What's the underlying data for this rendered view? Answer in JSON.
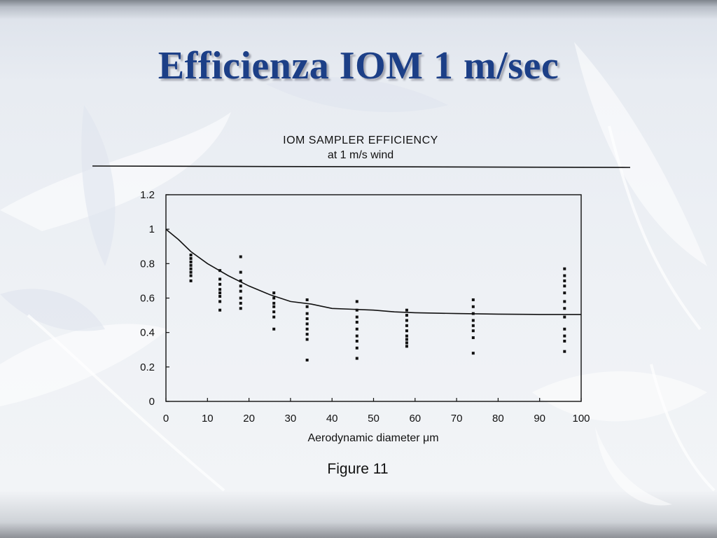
{
  "slide": {
    "title": "Efficienza IOM  1 m/sec"
  },
  "chart_data": {
    "type": "scatter",
    "title": "IOM SAMPLER EFFICIENCY",
    "subtitle": "at 1 m/s wind",
    "xlabel": "Aerodynamic diameter μm",
    "ylabel": "",
    "xlim": [
      0,
      100
    ],
    "ylim": [
      0,
      1.2
    ],
    "xticks": [
      "0",
      "10",
      "20",
      "30",
      "40",
      "50",
      "60",
      "70",
      "80",
      "90",
      "100"
    ],
    "yticks": [
      "0",
      "0.2",
      "0.4",
      "0.6",
      "0.8",
      "1",
      "1.2"
    ],
    "grid": false,
    "caption": "Figure 11",
    "series": [
      {
        "type": "scatter",
        "points": [
          [
            6,
            0.7
          ],
          [
            6,
            0.73
          ],
          [
            6,
            0.75
          ],
          [
            6,
            0.77
          ],
          [
            6,
            0.79
          ],
          [
            6,
            0.81
          ],
          [
            6,
            0.83
          ],
          [
            6,
            0.85
          ],
          [
            13,
            0.53
          ],
          [
            13,
            0.58
          ],
          [
            13,
            0.61
          ],
          [
            13,
            0.63
          ],
          [
            13,
            0.65
          ],
          [
            13,
            0.68
          ],
          [
            13,
            0.71
          ],
          [
            13,
            0.76
          ],
          [
            18,
            0.54
          ],
          [
            18,
            0.57
          ],
          [
            18,
            0.6
          ],
          [
            18,
            0.64
          ],
          [
            18,
            0.67
          ],
          [
            18,
            0.7
          ],
          [
            18,
            0.75
          ],
          [
            18,
            0.84
          ],
          [
            26,
            0.42
          ],
          [
            26,
            0.49
          ],
          [
            26,
            0.52
          ],
          [
            26,
            0.55
          ],
          [
            26,
            0.57
          ],
          [
            26,
            0.6
          ],
          [
            26,
            0.63
          ],
          [
            34,
            0.24
          ],
          [
            34,
            0.36
          ],
          [
            34,
            0.39
          ],
          [
            34,
            0.42
          ],
          [
            34,
            0.45
          ],
          [
            34,
            0.48
          ],
          [
            34,
            0.51
          ],
          [
            34,
            0.55
          ],
          [
            34,
            0.59
          ],
          [
            46,
            0.25
          ],
          [
            46,
            0.31
          ],
          [
            46,
            0.35
          ],
          [
            46,
            0.38
          ],
          [
            46,
            0.42
          ],
          [
            46,
            0.46
          ],
          [
            46,
            0.49
          ],
          [
            46,
            0.53
          ],
          [
            46,
            0.58
          ],
          [
            58,
            0.32
          ],
          [
            58,
            0.34
          ],
          [
            58,
            0.36
          ],
          [
            58,
            0.38
          ],
          [
            58,
            0.41
          ],
          [
            58,
            0.44
          ],
          [
            58,
            0.47
          ],
          [
            58,
            0.5
          ],
          [
            58,
            0.53
          ],
          [
            74,
            0.28
          ],
          [
            74,
            0.37
          ],
          [
            74,
            0.41
          ],
          [
            74,
            0.44
          ],
          [
            74,
            0.47
          ],
          [
            74,
            0.51
          ],
          [
            74,
            0.55
          ],
          [
            74,
            0.59
          ],
          [
            96,
            0.29
          ],
          [
            96,
            0.35
          ],
          [
            96,
            0.38
          ],
          [
            96,
            0.42
          ],
          [
            96,
            0.49
          ],
          [
            96,
            0.54
          ],
          [
            96,
            0.58
          ],
          [
            96,
            0.63
          ],
          [
            96,
            0.67
          ],
          [
            96,
            0.7
          ],
          [
            96,
            0.73
          ],
          [
            96,
            0.77
          ]
        ]
      },
      {
        "type": "line",
        "points": [
          [
            0,
            1.0
          ],
          [
            3,
            0.94
          ],
          [
            6,
            0.87
          ],
          [
            10,
            0.8
          ],
          [
            15,
            0.73
          ],
          [
            20,
            0.67
          ],
          [
            25,
            0.62
          ],
          [
            30,
            0.58
          ],
          [
            35,
            0.565
          ],
          [
            40,
            0.54
          ],
          [
            45,
            0.535
          ],
          [
            50,
            0.53
          ],
          [
            55,
            0.52
          ],
          [
            60,
            0.515
          ],
          [
            70,
            0.51
          ],
          [
            80,
            0.507
          ],
          [
            90,
            0.505
          ],
          [
            100,
            0.505
          ]
        ]
      }
    ]
  }
}
